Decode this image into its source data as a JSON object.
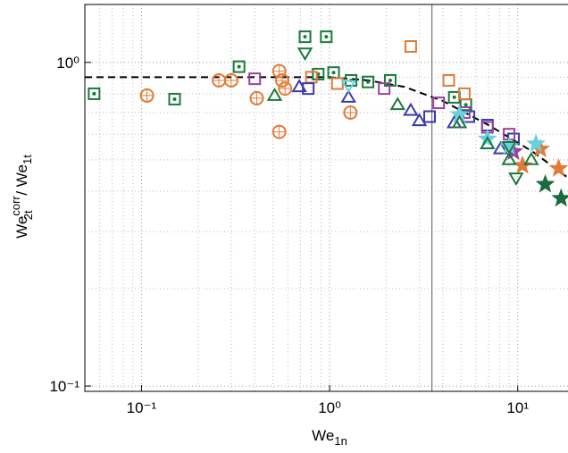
{
  "chart_data": {
    "type": "scatter",
    "xlabel": {
      "base": "We",
      "sub": "1n"
    },
    "ylabel": {
      "base": "We",
      "sup": "corr",
      "sub": "2t",
      "sep": " / We",
      "sub2": "1t"
    },
    "xlog": true,
    "ylog": true,
    "grid": true,
    "xlim": [
      0.05,
      18.5
    ],
    "ylim": [
      0.0963,
      1.51
    ],
    "xticks": [
      {
        "value": 0.1,
        "label": "10⁻¹"
      },
      {
        "value": 1,
        "label": "10⁰"
      },
      {
        "value": 10,
        "label": "10¹"
      }
    ],
    "yticks": [
      {
        "value": 0.1,
        "label": "10⁻¹"
      },
      {
        "value": 1,
        "label": "10⁰"
      }
    ],
    "vlines": [
      3.5
    ],
    "fit": {
      "color": "#000000",
      "x": [
        0.05,
        0.3,
        1,
        1.6,
        2.5,
        4,
        7,
        12,
        18.5
      ],
      "y": [
        0.9,
        0.9,
        0.9,
        0.88,
        0.84,
        0.76,
        0.64,
        0.53,
        0.44
      ]
    },
    "series": [
      {
        "color": "#1a7a3c",
        "marker": "square-dot",
        "x": [
          0.056,
          0.15,
          0.33,
          0.74,
          0.96,
          0.87,
          1.05,
          1.3,
          1.6,
          2.1,
          4.6,
          5.3
        ],
        "values": [
          0.8,
          0.77,
          0.97,
          1.2,
          1.2,
          0.92,
          0.93,
          0.88,
          0.87,
          0.88,
          0.78,
          0.74
        ]
      },
      {
        "color": "#e07b39",
        "marker": "circle-plus",
        "x": [
          0.107,
          0.258,
          0.3,
          0.41,
          0.54,
          0.56,
          0.58,
          0.54,
          1.29
        ],
        "values": [
          0.79,
          0.88,
          0.88,
          0.775,
          0.94,
          0.88,
          0.83,
          0.61,
          0.7
        ]
      },
      {
        "color": "#e07b39",
        "marker": "square",
        "x": [
          2.7,
          5.2,
          4.3,
          0.8,
          1.1
        ],
        "values": [
          1.12,
          0.8,
          0.88,
          0.9,
          0.86
        ]
      },
      {
        "color": "#e07b39",
        "marker": "star",
        "x": [
          13.2,
          16.5,
          10.6
        ],
        "values": [
          0.54,
          0.47,
          0.48
        ]
      },
      {
        "color": "#3a3aa8",
        "marker": "triangle",
        "x": [
          0.69,
          1.26,
          2.7,
          3.0,
          4.6,
          8.1
        ],
        "values": [
          0.84,
          0.78,
          0.71,
          0.66,
          0.65,
          0.54
        ]
      },
      {
        "color": "#3a3aa8",
        "marker": "square",
        "x": [
          0.77,
          3.4,
          5.5,
          6.9,
          9.5
        ],
        "values": [
          0.83,
          0.68,
          0.68,
          0.64,
          0.58
        ]
      },
      {
        "color": "#9b3fa0",
        "marker": "square",
        "x": [
          0.4,
          1.95,
          3.8,
          5.2,
          6.9,
          9
        ],
        "values": [
          0.89,
          0.83,
          0.75,
          0.7,
          0.63,
          0.6
        ]
      },
      {
        "color": "#9b3fa0",
        "marker": "star",
        "x": [
          9.5
        ],
        "values": [
          0.53
        ]
      },
      {
        "color": "#6ccfe0",
        "marker": "triangle-down",
        "x": [
          1.26
        ],
        "values": [
          0.85
        ]
      },
      {
        "color": "#6ccfe0",
        "marker": "star",
        "x": [
          4.9,
          6.9,
          9,
          12.5
        ],
        "values": [
          0.69,
          0.58,
          0.55,
          0.56
        ]
      },
      {
        "color": "#1a7a3c",
        "marker": "triangle",
        "x": [
          0.51,
          2.3,
          4.9,
          6.9,
          9,
          11.8
        ],
        "values": [
          0.79,
          0.74,
          0.65,
          0.56,
          0.5,
          0.5
        ]
      },
      {
        "color": "#1a7a3c",
        "marker": "triangle-down",
        "x": [
          0.74,
          9,
          9.8
        ],
        "values": [
          1.07,
          0.55,
          0.44
        ]
      },
      {
        "color": "#1a6a3c",
        "marker": "star-filled",
        "x": [
          14,
          17
        ],
        "values": [
          0.42,
          0.38
        ]
      }
    ]
  }
}
